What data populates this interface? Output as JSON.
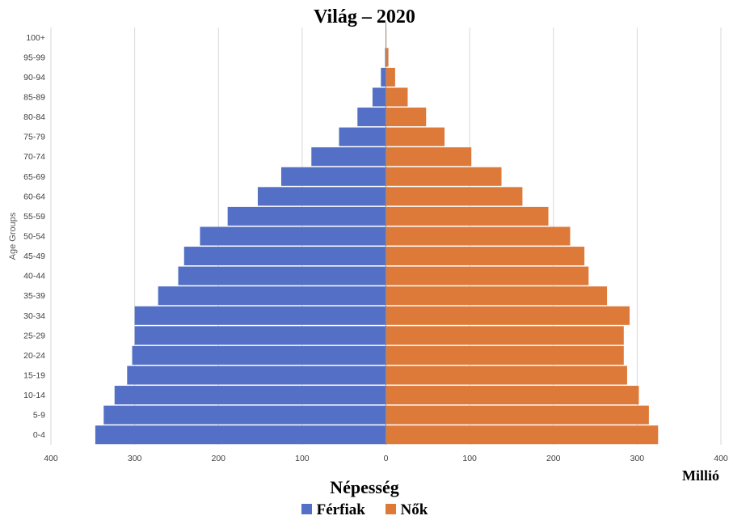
{
  "chart_data": {
    "type": "bar",
    "orientation": "horizontal-population-pyramid",
    "title": "Világ – 2020",
    "xlabel": "Népesség",
    "unit": "Millió",
    "ylabel": "Age Groups",
    "categories": [
      "0-4",
      "5-9",
      "10-14",
      "15-19",
      "20-24",
      "25-29",
      "30-34",
      "35-39",
      "40-44",
      "45-49",
      "50-54",
      "55-59",
      "60-64",
      "65-69",
      "70-74",
      "75-79",
      "80-84",
      "85-89",
      "90-94",
      "95-99",
      "100+"
    ],
    "series": [
      {
        "name": "Férfiak",
        "color": "#5470c6",
        "side": "left",
        "values": [
          347,
          337,
          324,
          309,
          303,
          300,
          300,
          272,
          248,
          241,
          222,
          189,
          153,
          125,
          89,
          56,
          34,
          16,
          6,
          1,
          0.1
        ]
      },
      {
        "name": "Nők",
        "color": "#dd7a3a",
        "side": "right",
        "values": [
          325,
          314,
          302,
          288,
          284,
          284,
          291,
          264,
          242,
          237,
          220,
          194,
          163,
          138,
          102,
          70,
          48,
          26,
          11,
          3,
          0.5
        ]
      }
    ],
    "xlim": [
      -400,
      400
    ],
    "xticks": [
      -400,
      -300,
      -200,
      -100,
      0,
      100,
      200,
      300,
      400
    ],
    "xtick_labels": [
      "400",
      "300",
      "200",
      "100",
      "0",
      "100",
      "200",
      "300",
      "400"
    ],
    "grid": "vertical",
    "legend_position": "bottom"
  }
}
